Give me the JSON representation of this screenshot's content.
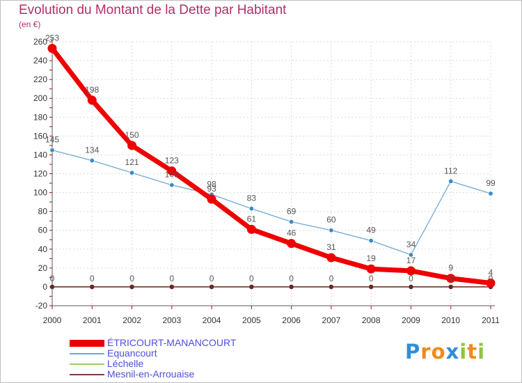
{
  "chart_data": {
    "type": "line",
    "title": "Evolution du Montant de la Dette par Habitant",
    "subtitle": "(en €)",
    "x": [
      "2000",
      "2001",
      "2002",
      "2003",
      "2004",
      "2005",
      "2006",
      "2007",
      "2008",
      "2009",
      "2010",
      "2011"
    ],
    "ylim": [
      -20,
      260
    ],
    "yticks": [
      -20,
      0,
      20,
      40,
      60,
      80,
      100,
      120,
      140,
      160,
      180,
      200,
      220,
      240,
      260
    ],
    "grid": true,
    "legend_position": "bottom-left",
    "series": [
      {
        "name": "ÉTRICOURT-MANANCOURT",
        "color": "#ee0000",
        "values": [
          253,
          198,
          150,
          123,
          93,
          61,
          46,
          31,
          19,
          17,
          9,
          4
        ]
      },
      {
        "name": "Equancourt",
        "color": "#6fa8d6",
        "values": [
          145,
          134,
          121,
          108,
          98,
          83,
          69,
          60,
          49,
          34,
          112,
          99
        ]
      },
      {
        "name": "Léchelle",
        "color": "#8fd06a",
        "values": [
          0,
          0,
          0,
          0,
          0,
          0,
          0,
          0,
          0,
          0,
          0,
          0
        ]
      },
      {
        "name": "Mesnil-en-Arrouaise",
        "color": "#7b3b3b",
        "values": [
          0,
          0,
          0,
          0,
          0,
          0,
          0,
          0,
          0,
          0,
          0,
          0
        ]
      }
    ]
  },
  "brand": {
    "letters": [
      "P",
      "r",
      "o",
      "x",
      "i",
      "t",
      "i"
    ],
    "colors": [
      "#2e8fd8",
      "#f08a1c",
      "#f08a1c",
      "#2e8fd8",
      "#8cc63f",
      "#f08a1c",
      "#8cc63f"
    ]
  }
}
